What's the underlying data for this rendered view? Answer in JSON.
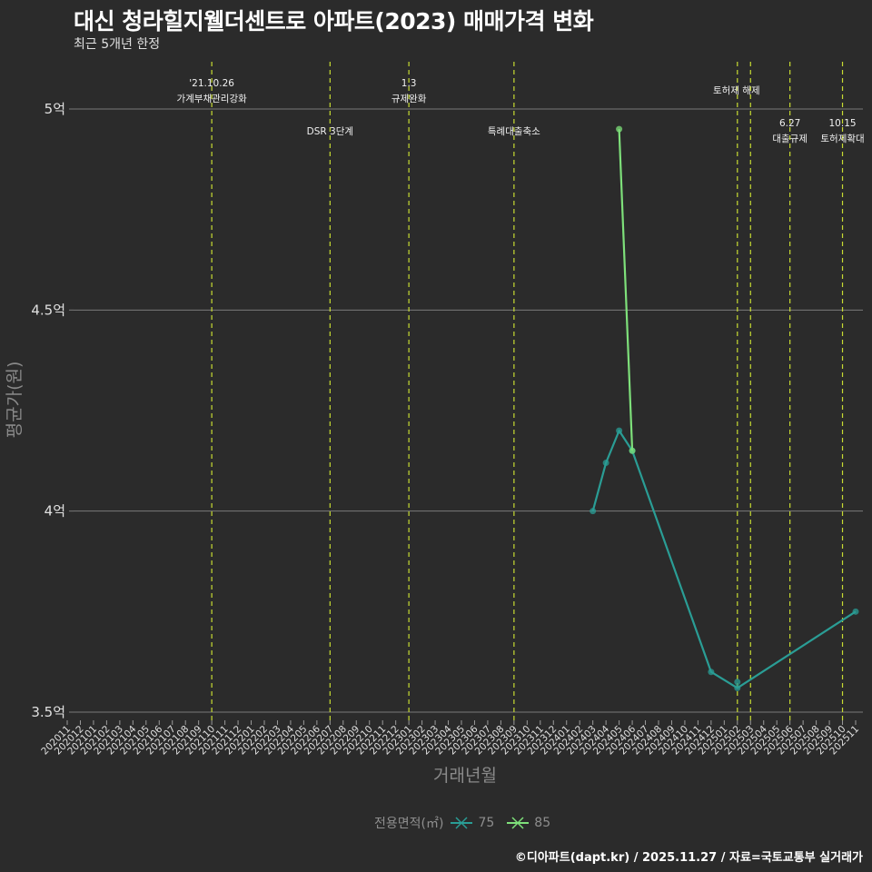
{
  "title": "대신 청라힐지웰더센트로 아파트(2023) 매매가격 변화",
  "subtitle": "최근 5개년 한정",
  "caption": "©디아파트(dapt.kr) / 2025.11.27 / 자료=국토교통부 실거래가",
  "legend": {
    "title": "전용면적(㎡)",
    "items": [
      {
        "label": "75",
        "color": "#2a9d95"
      },
      {
        "label": "85",
        "color": "#7ee07a"
      }
    ]
  },
  "colors": {
    "background": "#2b2b2b",
    "grid": "#7a7a7a",
    "event_line": "#c8dc32",
    "series_75": "#2a9d95",
    "series_85": "#7ee07a"
  },
  "chart_data": {
    "type": "line",
    "title": "대신 청라힐지웰더센트로 아파트(2023) 매매가격 변화",
    "subtitle": "최근 5개년 한정",
    "xlabel": "거래년월",
    "ylabel": "평균가(원)",
    "ylim": [
      3.5,
      5.0
    ],
    "y_unit": "억",
    "yticks": [
      "3.5억",
      "4억",
      "4.5억",
      "5억"
    ],
    "ytick_values": [
      3.5,
      4.0,
      4.5,
      5.0
    ],
    "grid": true,
    "legend_position": "bottom",
    "categories": [
      "202011",
      "202012",
      "202101",
      "202102",
      "202103",
      "202104",
      "202105",
      "202106",
      "202107",
      "202108",
      "202109",
      "202110",
      "202111",
      "202112",
      "202201",
      "202202",
      "202203",
      "202204",
      "202205",
      "202206",
      "202207",
      "202208",
      "202209",
      "202210",
      "202211",
      "202212",
      "202301",
      "202302",
      "202303",
      "202304",
      "202305",
      "202306",
      "202307",
      "202308",
      "202309",
      "202310",
      "202311",
      "202312",
      "202401",
      "202402",
      "202403",
      "202404",
      "202405",
      "202406",
      "202407",
      "202408",
      "202409",
      "202410",
      "202411",
      "202412",
      "202501",
      "202502",
      "202503",
      "202504",
      "202505",
      "202506",
      "202507",
      "202508",
      "202509",
      "202510",
      "202511"
    ],
    "series": [
      {
        "name": "75",
        "points": [
          {
            "x": "202403",
            "y": 4.0
          },
          {
            "x": "202404",
            "y": 4.12
          },
          {
            "x": "202405",
            "y": 4.2
          },
          {
            "x": "202406",
            "y": 4.15
          },
          {
            "x": "202412",
            "y": 3.6
          },
          {
            "x": "202502",
            "y": 3.56
          },
          {
            "x": "202511",
            "y": 3.75
          }
        ],
        "extra_points": [
          {
            "x": "202502",
            "y": 3.575
          }
        ]
      },
      {
        "name": "85",
        "points": [
          {
            "x": "202405",
            "y": 4.95
          },
          {
            "x": "202406",
            "y": 4.15
          }
        ]
      }
    ],
    "annotations": [
      {
        "x": "202110",
        "row": "top",
        "lines": [
          "'21.10.26",
          "가계부채관리강화"
        ]
      },
      {
        "x": "202207",
        "row": "mid",
        "lines": [
          "DSR 3단계"
        ]
      },
      {
        "x": "202301",
        "row": "top",
        "lines": [
          "1.3",
          "규제완화"
        ]
      },
      {
        "x": "202309",
        "row": "mid",
        "lines": [
          "특례대출축소"
        ]
      },
      {
        "x": "202502",
        "row": "upper",
        "lines": [
          "토허제 해제"
        ]
      },
      {
        "x": "202503",
        "row": "none",
        "lines": []
      },
      {
        "x": "202506",
        "row": "low",
        "lines": [
          "6.27",
          "대출규제"
        ]
      },
      {
        "x": "202510",
        "row": "low",
        "lines": [
          "10.15",
          "토허제확대"
        ]
      }
    ]
  }
}
